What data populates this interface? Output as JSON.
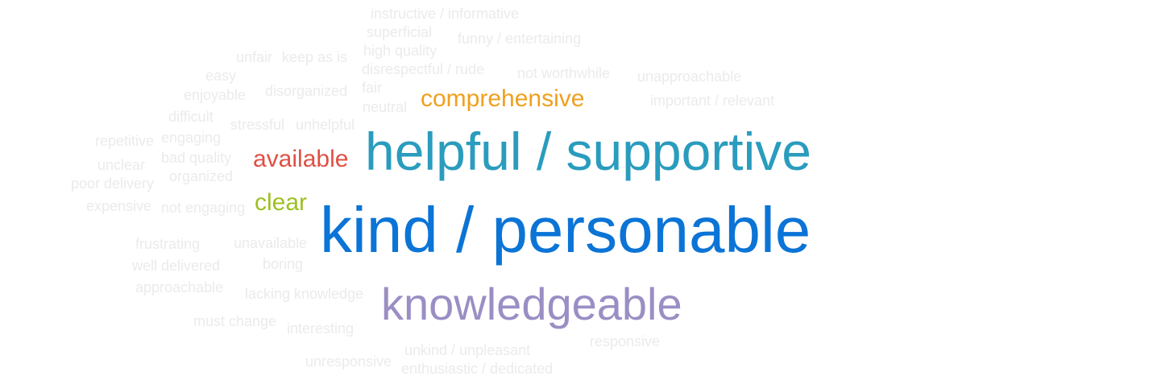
{
  "words": [
    {
      "text": "instructive / informative",
      "color": "#ebebeb",
      "weight": "minor"
    },
    {
      "text": "superficial",
      "color": "#ebebeb",
      "weight": "minor"
    },
    {
      "text": "funny / entertaining",
      "color": "#ebebeb",
      "weight": "minor"
    },
    {
      "text": "unfair",
      "color": "#ebebeb",
      "weight": "minor"
    },
    {
      "text": "keep as is",
      "color": "#ebebeb",
      "weight": "minor"
    },
    {
      "text": "high quality",
      "color": "#ebebeb",
      "weight": "minor"
    },
    {
      "text": "easy",
      "color": "#ebebeb",
      "weight": "minor"
    },
    {
      "text": "disrespectful / rude",
      "color": "#ebebeb",
      "weight": "minor"
    },
    {
      "text": "not worthwhile",
      "color": "#ebebeb",
      "weight": "minor"
    },
    {
      "text": "unapproachable",
      "color": "#ebebeb",
      "weight": "minor"
    },
    {
      "text": "enjoyable",
      "color": "#ebebeb",
      "weight": "minor"
    },
    {
      "text": "disorganized",
      "color": "#ebebeb",
      "weight": "minor"
    },
    {
      "text": "fair",
      "color": "#ebebeb",
      "weight": "minor"
    },
    {
      "text": "neutral",
      "color": "#ebebeb",
      "weight": "minor"
    },
    {
      "text": "comprehensive",
      "color": "#f0a01e",
      "weight": "medium"
    },
    {
      "text": "important / relevant",
      "color": "#ebebeb",
      "weight": "minor"
    },
    {
      "text": "difficult",
      "color": "#ebebeb",
      "weight": "minor"
    },
    {
      "text": "stressful",
      "color": "#ebebeb",
      "weight": "minor"
    },
    {
      "text": "unhelpful",
      "color": "#ebebeb",
      "weight": "minor"
    },
    {
      "text": "engaging",
      "color": "#ebebeb",
      "weight": "minor"
    },
    {
      "text": "repetitive",
      "color": "#ebebeb",
      "weight": "minor"
    },
    {
      "text": "helpful / supportive",
      "color": "#2a9cbe",
      "weight": "major"
    },
    {
      "text": "bad quality",
      "color": "#ebebeb",
      "weight": "minor"
    },
    {
      "text": "unclear",
      "color": "#ebebeb",
      "weight": "minor"
    },
    {
      "text": "available",
      "color": "#e05045",
      "weight": "medium"
    },
    {
      "text": "organized",
      "color": "#ebebeb",
      "weight": "minor"
    },
    {
      "text": "poor delivery",
      "color": "#ebebeb",
      "weight": "minor"
    },
    {
      "text": "clear",
      "color": "#9ec021",
      "weight": "medium"
    },
    {
      "text": "expensive",
      "color": "#ebebeb",
      "weight": "minor"
    },
    {
      "text": "not engaging",
      "color": "#ebebeb",
      "weight": "minor"
    },
    {
      "text": "kind / personable",
      "color": "#0b74d6",
      "weight": "largest"
    },
    {
      "text": "frustrating",
      "color": "#ebebeb",
      "weight": "minor"
    },
    {
      "text": "unavailable",
      "color": "#ebebeb",
      "weight": "minor"
    },
    {
      "text": "well delivered",
      "color": "#ebebeb",
      "weight": "minor"
    },
    {
      "text": "boring",
      "color": "#ebebeb",
      "weight": "minor"
    },
    {
      "text": "approachable",
      "color": "#ebebeb",
      "weight": "minor"
    },
    {
      "text": "lacking knowledge",
      "color": "#ebebeb",
      "weight": "minor"
    },
    {
      "text": "knowledgeable",
      "color": "#9b8ec4",
      "weight": "large"
    },
    {
      "text": "must change",
      "color": "#ebebeb",
      "weight": "minor"
    },
    {
      "text": "interesting",
      "color": "#ebebeb",
      "weight": "minor"
    },
    {
      "text": "responsive",
      "color": "#ebebeb",
      "weight": "minor"
    },
    {
      "text": "unkind / unpleasant",
      "color": "#ebebeb",
      "weight": "minor"
    },
    {
      "text": "unresponsive",
      "color": "#ebebeb",
      "weight": "minor"
    },
    {
      "text": "enthusiastic / dedicated",
      "color": "#ebebeb",
      "weight": "minor"
    }
  ]
}
